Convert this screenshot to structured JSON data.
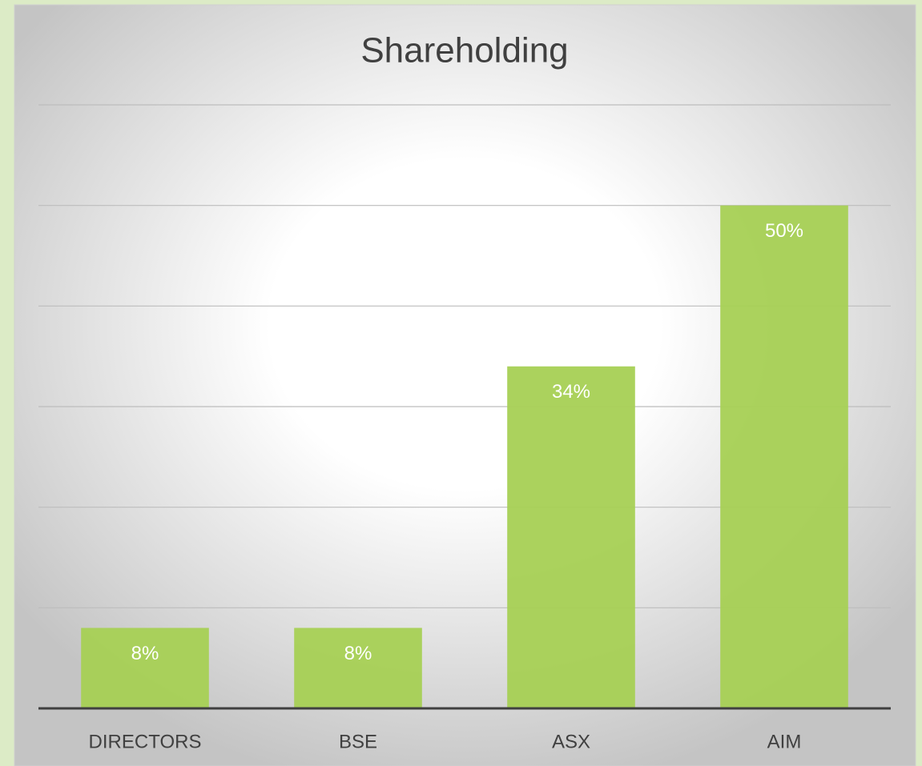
{
  "chart_data": {
    "type": "bar",
    "title": "Shareholding",
    "categories": [
      "DIRECTORS",
      "BSE",
      "ASX",
      "AIM"
    ],
    "values": [
      8,
      8,
      34,
      50
    ],
    "value_labels": [
      "8%",
      "8%",
      "34%",
      "50%"
    ],
    "color": "#a6d054",
    "ylim": [
      0,
      60
    ],
    "yticks": [
      0,
      10,
      20,
      30,
      40,
      50,
      60
    ],
    "grid": true
  }
}
